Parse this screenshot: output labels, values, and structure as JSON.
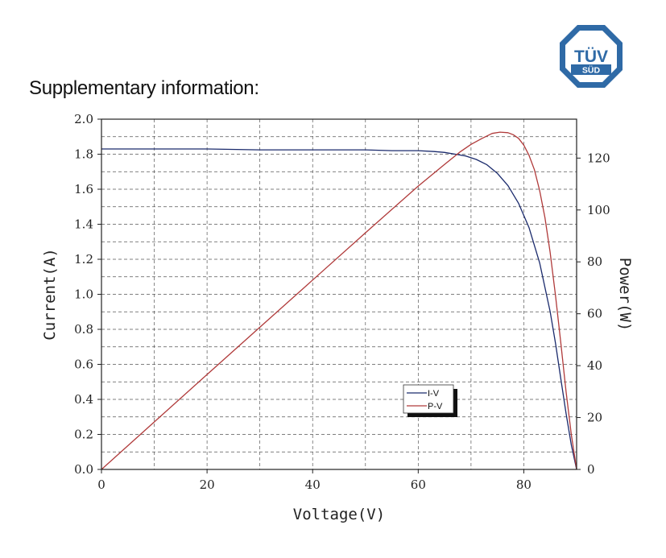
{
  "page": {
    "heading": "Supplementary information:",
    "logo_text_main": "TÜV",
    "logo_text_sub": "SÜD",
    "logo_color": "#2F6AA6"
  },
  "chart_data": {
    "type": "line",
    "title": "",
    "xlabel": "Voltage(V)",
    "ylabel_left": "Current(A)",
    "ylabel_right": "Power(W)",
    "xlim": [
      0,
      90
    ],
    "ylim_left": [
      0,
      2.0
    ],
    "ylim_right": [
      0,
      135
    ],
    "x_ticks": [
      0,
      20,
      40,
      60,
      80
    ],
    "y_left_ticks": [
      0.0,
      0.2,
      0.4,
      0.6,
      0.8,
      1.0,
      1.2,
      1.4,
      1.6,
      1.8,
      2.0
    ],
    "y_left_tick_labels": [
      "0.0",
      "0.2",
      "0.4",
      "0.6",
      "0.8",
      "1.0",
      "1.2",
      "1.4",
      "1.6",
      "1.8",
      "2.0"
    ],
    "y_right_ticks": [
      0,
      20,
      40,
      60,
      80,
      100,
      120
    ],
    "grid": true,
    "legend_position": "lower-center",
    "series": [
      {
        "name": "I-V",
        "axis": "left",
        "color": "#1a2a6c",
        "x": [
          0,
          10,
          20,
          30,
          40,
          50,
          55,
          60,
          63,
          65,
          67,
          69,
          71,
          73,
          75,
          77,
          79,
          81,
          83,
          85,
          86,
          87,
          88,
          89,
          90
        ],
        "y": [
          1.83,
          1.83,
          1.83,
          1.825,
          1.825,
          1.825,
          1.82,
          1.82,
          1.815,
          1.81,
          1.8,
          1.79,
          1.77,
          1.74,
          1.69,
          1.62,
          1.52,
          1.38,
          1.18,
          0.9,
          0.72,
          0.52,
          0.32,
          0.14,
          0.0
        ]
      },
      {
        "name": "P-V",
        "axis": "right",
        "color": "#b03a3a",
        "x": [
          0,
          10,
          20,
          30,
          40,
          50,
          60,
          65,
          68,
          70,
          72,
          74,
          75.5,
          77,
          78,
          79,
          80,
          81,
          82,
          83,
          84,
          85,
          86,
          87,
          88,
          89,
          90
        ],
        "y": [
          0,
          18.3,
          36.6,
          54.8,
          73.0,
          91.2,
          109.2,
          117.6,
          122.5,
          125.3,
          127.5,
          129.5,
          130.0,
          129.8,
          129.0,
          127.6,
          125.0,
          121.0,
          115.5,
          107.5,
          97.0,
          83.5,
          67.0,
          49.0,
          30.0,
          13.5,
          0
        ]
      }
    ]
  }
}
